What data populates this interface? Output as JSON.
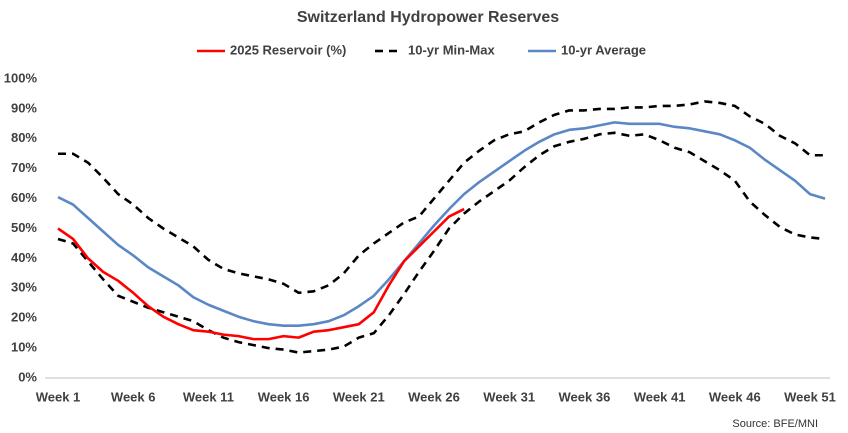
{
  "chart_data": {
    "type": "line",
    "title": "Switzerland Hydropower Reserves",
    "source": "Source: BFE/MNI",
    "categories": [
      "Week 1",
      null,
      null,
      null,
      null,
      "Week 6",
      null,
      null,
      null,
      null,
      "Week 11",
      null,
      null,
      null,
      null,
      "Week 16",
      null,
      null,
      null,
      null,
      "Week 21",
      null,
      null,
      null,
      null,
      "Week 26",
      null,
      null,
      null,
      null,
      "Week 31",
      null,
      null,
      null,
      null,
      "Week 36",
      null,
      null,
      null,
      null,
      "Week 41",
      null,
      null,
      null,
      null,
      "Week 46",
      null,
      null,
      null,
      null,
      "Week 51",
      null
    ],
    "ylim": [
      0,
      100
    ],
    "yticks": [
      {
        "value": 0,
        "label": "0%"
      },
      {
        "value": 10,
        "label": "10%"
      },
      {
        "value": 20,
        "label": "20%"
      },
      {
        "value": 30,
        "label": "30%"
      },
      {
        "value": 40,
        "label": "40%"
      },
      {
        "value": 50,
        "label": "50%"
      },
      {
        "value": 60,
        "label": "60%"
      },
      {
        "value": 70,
        "label": "70%"
      },
      {
        "value": 80,
        "label": "80%"
      },
      {
        "value": 90,
        "label": "90%"
      },
      {
        "value": 100,
        "label": "100%"
      }
    ],
    "grid": false,
    "series": [
      {
        "name": "2025 Reservoir (%)",
        "color": "#ff0000",
        "values": [
          50,
          46.5,
          40,
          35.5,
          32.5,
          28.5,
          24,
          20.5,
          18,
          16,
          15.5,
          14.5,
          14,
          13,
          13,
          14,
          13.5,
          15.5,
          16,
          17,
          18,
          22,
          31,
          39,
          44,
          49,
          54,
          56.5,
          null,
          null,
          null,
          null,
          null,
          null,
          null,
          null,
          null,
          null,
          null,
          null,
          null,
          null,
          null,
          null,
          null,
          null,
          null,
          null,
          null,
          null,
          null,
          null
        ]
      },
      {
        "name": "10-yr Min-Max",
        "color": "#000000",
        "dashed": true,
        "low": [
          46.5,
          45,
          39,
          33,
          27.5,
          25.5,
          23.5,
          22,
          20.5,
          19,
          16,
          13.5,
          12,
          11,
          10,
          9.5,
          8.5,
          9,
          9.5,
          10.5,
          13.5,
          15,
          21,
          28,
          35.5,
          42.5,
          50,
          55,
          59,
          62.5,
          66,
          70.5,
          74.5,
          77.5,
          79,
          80,
          81.5,
          82,
          81,
          81.5,
          79.5,
          77,
          75.5,
          72.5,
          69.5,
          66,
          59,
          54.5,
          50.5,
          48,
          47,
          46.5
        ],
        "high": [
          75,
          75,
          72,
          67,
          61.5,
          58,
          53.5,
          50,
          47,
          44,
          39.5,
          36.5,
          35,
          34,
          33,
          31.5,
          28.5,
          29,
          31,
          35,
          41,
          45,
          48.5,
          52,
          54,
          60,
          66,
          72,
          76,
          79.5,
          81.5,
          82.5,
          85.5,
          88,
          89.5,
          89.5,
          90,
          90,
          90.5,
          90.5,
          91,
          91,
          91.5,
          92.5,
          92,
          91,
          87.5,
          85,
          81,
          78.5,
          74.5,
          74.5
        ]
      },
      {
        "name": "10-yr Average",
        "color": "#5b87c5",
        "values": [
          60.5,
          58,
          53.5,
          49,
          44.5,
          41,
          37,
          34,
          31,
          27,
          24.5,
          22.5,
          20.5,
          19,
          18,
          17.5,
          17.5,
          18,
          19,
          21,
          24,
          27.5,
          33,
          39,
          45,
          51,
          56.5,
          61.5,
          65.5,
          69,
          72.5,
          76,
          79,
          81.5,
          83,
          83.5,
          84.5,
          85.5,
          85,
          85,
          85,
          84,
          83.5,
          82.5,
          81.5,
          79.5,
          77,
          73,
          69.5,
          66,
          61.5,
          60
        ]
      }
    ]
  }
}
